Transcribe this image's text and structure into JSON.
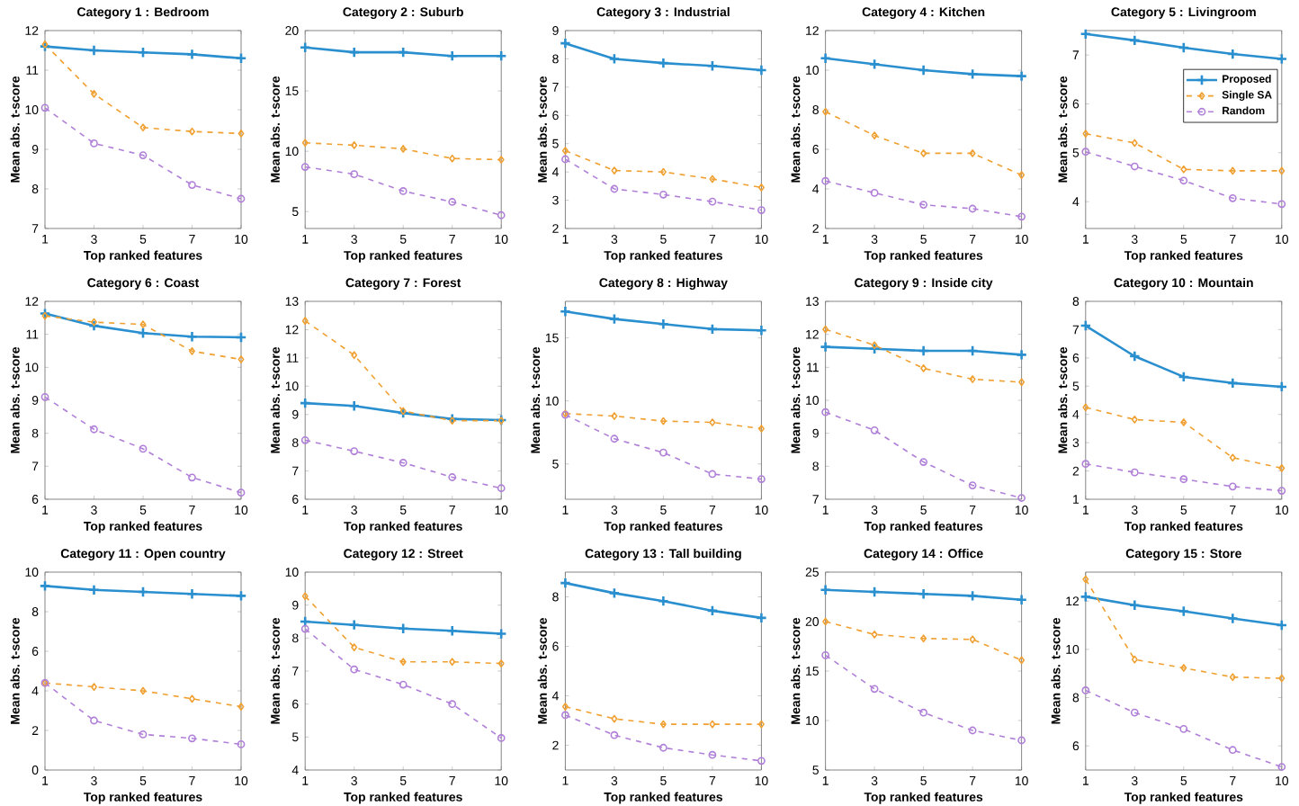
{
  "chart_data": [
    {
      "type": "line",
      "title": "Category 1 : Bedroom",
      "xlabel": "Top ranked features",
      "ylabel": "Mean abs. t-score",
      "categories": [
        "1",
        "3",
        "5",
        "7",
        "10"
      ],
      "ylim": [
        7,
        12
      ],
      "yticks": [
        7,
        8,
        9,
        10,
        11,
        12
      ],
      "series": [
        {
          "color": "#2a8fcf",
          "marker": "cross",
          "line_style": "solid",
          "values": [
            11.6,
            11.5,
            11.45,
            11.4,
            11.3
          ]
        },
        {
          "color": "#f0a030",
          "marker": "diamond",
          "line_style": "dashed",
          "values": [
            11.65,
            10.4,
            9.55,
            9.45,
            9.4
          ]
        },
        {
          "color": "#b07fd8",
          "marker": "circle",
          "line_style": "dashed",
          "values": [
            10.05,
            9.15,
            8.85,
            8.1,
            7.75
          ]
        }
      ]
    },
    {
      "type": "line",
      "title": "Category 2 : Suburb",
      "xlabel": "Top ranked features",
      "ylabel": "Mean abs. t-score",
      "categories": [
        "1",
        "3",
        "5",
        "7",
        "10"
      ],
      "ylim": [
        3.6,
        20
      ],
      "yticks": [
        5,
        10,
        15,
        20
      ],
      "series": [
        {
          "color": "#2a8fcf",
          "marker": "cross",
          "line_style": "solid",
          "values": [
            18.6,
            18.2,
            18.2,
            17.9,
            17.9
          ]
        },
        {
          "color": "#f0a030",
          "marker": "diamond",
          "line_style": "dashed",
          "values": [
            10.7,
            10.5,
            10.2,
            9.4,
            9.3
          ]
        },
        {
          "color": "#b07fd8",
          "marker": "circle",
          "line_style": "dashed",
          "values": [
            8.7,
            8.1,
            6.7,
            5.8,
            4.7
          ]
        }
      ]
    },
    {
      "type": "line",
      "title": "Category 3 : Industrial",
      "xlabel": "Top ranked features",
      "ylabel": "Mean abs. t-score",
      "categories": [
        "1",
        "3",
        "5",
        "7",
        "10"
      ],
      "ylim": [
        2,
        9
      ],
      "yticks": [
        2,
        3,
        4,
        5,
        6,
        7,
        8,
        9
      ],
      "series": [
        {
          "color": "#2a8fcf",
          "marker": "cross",
          "line_style": "solid",
          "values": [
            8.55,
            8.0,
            7.85,
            7.75,
            7.6
          ]
        },
        {
          "color": "#f0a030",
          "marker": "diamond",
          "line_style": "dashed",
          "values": [
            4.75,
            4.05,
            4.0,
            3.75,
            3.45
          ]
        },
        {
          "color": "#b07fd8",
          "marker": "circle",
          "line_style": "dashed",
          "values": [
            4.45,
            3.4,
            3.2,
            2.95,
            2.65
          ]
        }
      ]
    },
    {
      "type": "line",
      "title": "Category 4 : Kitchen",
      "xlabel": "Top ranked features",
      "ylabel": "Mean abs. t-score",
      "categories": [
        "1",
        "3",
        "5",
        "7",
        "10"
      ],
      "ylim": [
        2,
        12
      ],
      "yticks": [
        2,
        4,
        6,
        8,
        10,
        12
      ],
      "series": [
        {
          "color": "#2a8fcf",
          "marker": "cross",
          "line_style": "solid",
          "values": [
            10.6,
            10.3,
            10.0,
            9.8,
            9.7
          ]
        },
        {
          "color": "#f0a030",
          "marker": "diamond",
          "line_style": "dashed",
          "values": [
            7.9,
            6.7,
            5.8,
            5.8,
            4.7
          ]
        },
        {
          "color": "#b07fd8",
          "marker": "circle",
          "line_style": "dashed",
          "values": [
            4.4,
            3.8,
            3.2,
            3.0,
            2.6
          ]
        }
      ]
    },
    {
      "type": "line",
      "title": "Category 5 : Livingroom",
      "xlabel": "Top ranked features",
      "ylabel": "Mean abs. t-score",
      "categories": [
        "1",
        "3",
        "5",
        "7",
        "10"
      ],
      "ylim": [
        3.45,
        7.5
      ],
      "yticks": [
        4,
        5,
        6,
        7
      ],
      "legend": "right",
      "series": [
        {
          "name": "Proposed",
          "color": "#2a8fcf",
          "marker": "cross",
          "line_style": "solid",
          "values": [
            7.43,
            7.3,
            7.15,
            7.02,
            6.92
          ]
        },
        {
          "name": "Single SA",
          "color": "#f0a030",
          "marker": "diamond",
          "line_style": "dashed",
          "values": [
            5.39,
            5.2,
            4.66,
            4.63,
            4.63
          ]
        },
        {
          "name": "Random",
          "color": "#b07fd8",
          "marker": "circle",
          "line_style": "dashed",
          "values": [
            5.02,
            4.72,
            4.43,
            4.07,
            3.95
          ]
        }
      ]
    },
    {
      "type": "line",
      "title": "Category 6 : Coast",
      "xlabel": "Top ranked features",
      "ylabel": "Mean abs. t-score",
      "categories": [
        "1",
        "3",
        "5",
        "7",
        "10"
      ],
      "ylim": [
        6,
        12
      ],
      "yticks": [
        6,
        7,
        8,
        9,
        10,
        11,
        12
      ],
      "series": [
        {
          "color": "#2a8fcf",
          "marker": "cross",
          "line_style": "solid",
          "values": [
            11.63,
            11.26,
            11.04,
            10.93,
            10.91
          ]
        },
        {
          "color": "#f0a030",
          "marker": "diamond",
          "line_style": "dashed",
          "values": [
            11.56,
            11.37,
            11.3,
            10.49,
            10.24
          ]
        },
        {
          "color": "#b07fd8",
          "marker": "circle",
          "line_style": "dashed",
          "values": [
            9.1,
            8.12,
            7.53,
            6.66,
            6.2
          ]
        }
      ]
    },
    {
      "type": "line",
      "title": "Category 7 : Forest",
      "xlabel": "Top ranked features",
      "ylabel": "Mean abs. t-score",
      "categories": [
        "1",
        "3",
        "5",
        "7",
        "10"
      ],
      "ylim": [
        6,
        13
      ],
      "yticks": [
        6,
        7,
        8,
        9,
        10,
        11,
        12,
        13
      ],
      "series": [
        {
          "color": "#2a8fcf",
          "marker": "cross",
          "line_style": "solid",
          "values": [
            9.4,
            9.3,
            9.05,
            8.84,
            8.8
          ]
        },
        {
          "color": "#f0a030",
          "marker": "diamond",
          "line_style": "dashed",
          "values": [
            12.31,
            11.1,
            9.12,
            8.78,
            8.78
          ]
        },
        {
          "color": "#b07fd8",
          "marker": "circle",
          "line_style": "dashed",
          "values": [
            8.09,
            7.7,
            7.29,
            6.78,
            6.39
          ]
        }
      ]
    },
    {
      "type": "line",
      "title": "Category 8 : Highway",
      "xlabel": "Top ranked features",
      "ylabel": "Mean abs. t-score",
      "categories": [
        "1",
        "3",
        "5",
        "7",
        "10"
      ],
      "ylim": [
        2.2,
        17.9
      ],
      "yticks": [
        5,
        10,
        15
      ],
      "series": [
        {
          "color": "#2a8fcf",
          "marker": "cross",
          "line_style": "solid",
          "values": [
            17.1,
            16.5,
            16.1,
            15.7,
            15.6
          ]
        },
        {
          "color": "#f0a030",
          "marker": "diamond",
          "line_style": "dashed",
          "values": [
            9.0,
            8.8,
            8.4,
            8.3,
            7.8
          ]
        },
        {
          "color": "#b07fd8",
          "marker": "circle",
          "line_style": "dashed",
          "values": [
            8.9,
            7.0,
            5.9,
            4.2,
            3.8
          ]
        }
      ]
    },
    {
      "type": "line",
      "title": "Category 9 : Inside city",
      "xlabel": "Top ranked features",
      "ylabel": "Mean abs. t-score",
      "categories": [
        "1",
        "3",
        "5",
        "7",
        "10"
      ],
      "ylim": [
        7,
        13
      ],
      "yticks": [
        7,
        8,
        9,
        10,
        11,
        12,
        13
      ],
      "series": [
        {
          "color": "#2a8fcf",
          "marker": "cross",
          "line_style": "solid",
          "values": [
            11.62,
            11.56,
            11.5,
            11.5,
            11.38
          ]
        },
        {
          "color": "#f0a030",
          "marker": "diamond",
          "line_style": "dashed",
          "values": [
            12.15,
            11.67,
            10.97,
            10.64,
            10.55
          ]
        },
        {
          "color": "#b07fd8",
          "marker": "circle",
          "line_style": "dashed",
          "values": [
            9.64,
            9.09,
            8.13,
            7.42,
            7.04
          ]
        }
      ]
    },
    {
      "type": "line",
      "title": "Category 10 : Mountain",
      "xlabel": "Top ranked features",
      "ylabel": "Mean abs. t-score",
      "categories": [
        "1",
        "3",
        "5",
        "7",
        "10"
      ],
      "ylim": [
        1,
        8
      ],
      "yticks": [
        1,
        2,
        3,
        4,
        5,
        6,
        7,
        8
      ],
      "series": [
        {
          "color": "#2a8fcf",
          "marker": "cross",
          "line_style": "solid",
          "values": [
            7.14,
            6.06,
            5.33,
            5.11,
            4.98
          ]
        },
        {
          "color": "#f0a030",
          "marker": "diamond",
          "line_style": "dashed",
          "values": [
            4.25,
            3.82,
            3.72,
            2.47,
            2.1
          ]
        },
        {
          "color": "#b07fd8",
          "marker": "circle",
          "line_style": "dashed",
          "values": [
            2.25,
            1.95,
            1.71,
            1.45,
            1.3
          ]
        }
      ]
    },
    {
      "type": "line",
      "title": "Category 11 : Open country",
      "xlabel": "Top ranked features",
      "ylabel": "Mean abs. t-score",
      "categories": [
        "1",
        "3",
        "5",
        "7",
        "10"
      ],
      "ylim": [
        0,
        10
      ],
      "yticks": [
        0,
        2,
        4,
        6,
        8,
        10
      ],
      "series": [
        {
          "color": "#2a8fcf",
          "marker": "cross",
          "line_style": "solid",
          "values": [
            9.3,
            9.1,
            9.0,
            8.9,
            8.8
          ]
        },
        {
          "color": "#f0a030",
          "marker": "diamond",
          "line_style": "dashed",
          "values": [
            4.4,
            4.2,
            4.0,
            3.6,
            3.2
          ]
        },
        {
          "color": "#b07fd8",
          "marker": "circle",
          "line_style": "dashed",
          "values": [
            4.4,
            2.5,
            1.8,
            1.6,
            1.3
          ]
        }
      ]
    },
    {
      "type": "line",
      "title": "Category 12 : Street",
      "xlabel": "Top ranked features",
      "ylabel": "Mean abs. t-score",
      "categories": [
        "1",
        "3",
        "5",
        "7",
        "10"
      ],
      "ylim": [
        4,
        10
      ],
      "yticks": [
        4,
        5,
        6,
        7,
        8,
        9,
        10
      ],
      "series": [
        {
          "color": "#2a8fcf",
          "marker": "cross",
          "line_style": "solid",
          "values": [
            8.5,
            8.4,
            8.29,
            8.22,
            8.13
          ]
        },
        {
          "color": "#f0a030",
          "marker": "diamond",
          "line_style": "dashed",
          "values": [
            9.27,
            7.72,
            7.28,
            7.28,
            7.23
          ]
        },
        {
          "color": "#b07fd8",
          "marker": "circle",
          "line_style": "dashed",
          "values": [
            8.28,
            7.05,
            6.59,
            6.0,
            4.97
          ]
        }
      ]
    },
    {
      "type": "line",
      "title": "Category 13 : Tall building",
      "xlabel": "Top ranked features",
      "ylabel": "Mean abs. t-score",
      "categories": [
        "1",
        "3",
        "5",
        "7",
        "10"
      ],
      "ylim": [
        1,
        9
      ],
      "yticks": [
        2,
        4,
        6,
        8
      ],
      "series": [
        {
          "color": "#2a8fcf",
          "marker": "cross",
          "line_style": "solid",
          "values": [
            8.56,
            8.15,
            7.83,
            7.44,
            7.15
          ]
        },
        {
          "color": "#f0a030",
          "marker": "diamond",
          "line_style": "dashed",
          "values": [
            3.56,
            3.07,
            2.85,
            2.85,
            2.85
          ]
        },
        {
          "color": "#b07fd8",
          "marker": "circle",
          "line_style": "dashed",
          "values": [
            3.22,
            2.41,
            1.9,
            1.61,
            1.37
          ]
        }
      ]
    },
    {
      "type": "line",
      "title": "Category 14 : Office",
      "xlabel": "Top ranked features",
      "ylabel": "Mean abs. t-score",
      "categories": [
        "1",
        "3",
        "5",
        "7",
        "10"
      ],
      "ylim": [
        5,
        25
      ],
      "yticks": [
        5,
        10,
        15,
        20,
        25
      ],
      "series": [
        {
          "color": "#2a8fcf",
          "marker": "cross",
          "line_style": "solid",
          "values": [
            23.2,
            23.0,
            22.8,
            22.6,
            22.2
          ]
        },
        {
          "color": "#f0a030",
          "marker": "diamond",
          "line_style": "dashed",
          "values": [
            20.0,
            18.7,
            18.3,
            18.2,
            16.1
          ]
        },
        {
          "color": "#b07fd8",
          "marker": "circle",
          "line_style": "dashed",
          "values": [
            16.6,
            13.2,
            10.8,
            9.0,
            8.0
          ]
        }
      ]
    },
    {
      "type": "line",
      "title": "Category 15 : Store",
      "xlabel": "Top ranked features",
      "ylabel": "Mean abs. t-score",
      "categories": [
        "1",
        "3",
        "5",
        "7",
        "10"
      ],
      "ylim": [
        5,
        13.2
      ],
      "yticks": [
        6,
        8,
        10,
        12
      ],
      "series": [
        {
          "color": "#2a8fcf",
          "marker": "cross",
          "line_style": "solid",
          "values": [
            12.18,
            11.83,
            11.58,
            11.28,
            11.0
          ]
        },
        {
          "color": "#f0a030",
          "marker": "diamond",
          "line_style": "dashed",
          "values": [
            12.9,
            9.58,
            9.23,
            8.85,
            8.8
          ]
        },
        {
          "color": "#b07fd8",
          "marker": "circle",
          "line_style": "dashed",
          "values": [
            8.3,
            7.38,
            6.7,
            5.83,
            5.13
          ]
        }
      ]
    }
  ]
}
